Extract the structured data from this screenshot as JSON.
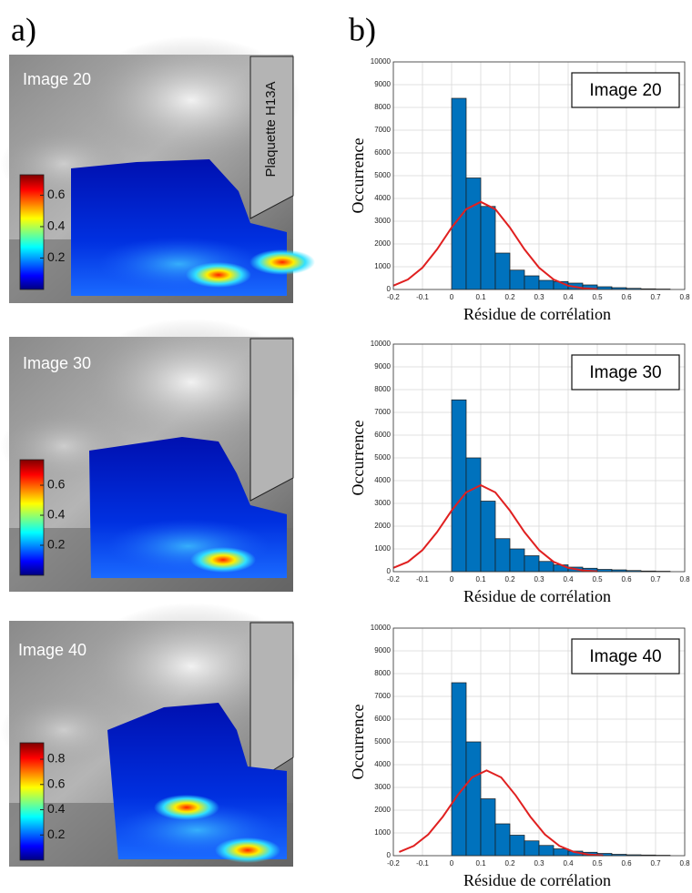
{
  "panel_labels": [
    "a)",
    "b)"
  ],
  "insert_label": "Plaquette H13A",
  "images": [
    {
      "label": "Image 20",
      "clim": [
        0,
        0.73
      ],
      "colorbar_ticks": [
        0.2,
        0.4,
        0.6
      ]
    },
    {
      "label": "Image 30",
      "clim": [
        0,
        0.77
      ],
      "colorbar_ticks": [
        0.2,
        0.4,
        0.6
      ]
    },
    {
      "label": "Image 40",
      "clim": [
        0,
        0.93
      ],
      "colorbar_ticks": [
        0.2,
        0.4,
        0.6,
        0.8
      ]
    }
  ],
  "chart_data": [
    {
      "type": "histogram",
      "legend": "Image 20",
      "xlabel": "Résidue de corrélation",
      "ylabel": "Occurrence",
      "color": "#0072bd",
      "bins": [
        0,
        0.05,
        0.1,
        0.15,
        0.2,
        0.25,
        0.3,
        0.35,
        0.4,
        0.45,
        0.5,
        0.55,
        0.6,
        0.65,
        0.7,
        0.75,
        0.8
      ],
      "counts": [
        8400,
        4900,
        3650,
        1600,
        850,
        600,
        400,
        350,
        280,
        200,
        120,
        80,
        50,
        30,
        20,
        0
      ],
      "fit": {
        "color": "#e02020",
        "x": [
          -0.2,
          -0.15,
          -0.1,
          -0.05,
          0,
          0.05,
          0.1,
          0.15,
          0.2,
          0.25,
          0.3,
          0.35,
          0.4,
          0.45,
          0.5
        ],
        "values": [
          169,
          439,
          960,
          1763,
          2721,
          3530,
          3850,
          3530,
          2721,
          1763,
          960,
          439,
          169,
          55,
          15
        ]
      },
      "xlim": [
        -0.2,
        0.8
      ],
      "xticks": [
        -0.2,
        -0.1,
        0,
        0.1,
        0.2,
        0.3,
        0.4,
        0.5,
        0.6,
        0.7,
        0.8
      ],
      "ylim": [
        0,
        10000
      ],
      "yticks": [
        0,
        1000,
        2000,
        3000,
        4000,
        5000,
        6000,
        7000,
        8000,
        9000,
        10000
      ],
      "grid": true
    },
    {
      "type": "histogram",
      "legend": "Image 30",
      "xlabel": "Résidue de corrélation",
      "ylabel": "Occurrence",
      "color": "#0072bd",
      "bins": [
        0,
        0.05,
        0.1,
        0.15,
        0.2,
        0.25,
        0.3,
        0.35,
        0.4,
        0.45,
        0.5,
        0.55,
        0.6,
        0.65,
        0.7,
        0.75,
        0.8
      ],
      "counts": [
        7550,
        5000,
        3100,
        1450,
        1000,
        700,
        450,
        300,
        200,
        150,
        100,
        80,
        50,
        30,
        20,
        0
      ],
      "fit": {
        "color": "#e02020",
        "x": [
          -0.2,
          -0.15,
          -0.1,
          -0.05,
          0,
          0.05,
          0.1,
          0.15,
          0.2,
          0.25,
          0.3,
          0.35,
          0.4,
          0.45,
          0.5
        ],
        "values": [
          167,
          433,
          948,
          1740,
          2686,
          3484,
          3800,
          3484,
          2686,
          1740,
          948,
          433,
          167,
          54,
          15
        ]
      },
      "xlim": [
        -0.2,
        0.8
      ],
      "xticks": [
        -0.2,
        -0.1,
        0,
        0.1,
        0.2,
        0.3,
        0.4,
        0.5,
        0.6,
        0.7,
        0.8
      ],
      "ylim": [
        0,
        10000
      ],
      "yticks": [
        0,
        1000,
        2000,
        3000,
        4000,
        5000,
        6000,
        7000,
        8000,
        9000,
        10000
      ],
      "grid": true
    },
    {
      "type": "histogram",
      "legend": "Image 40",
      "xlabel": "Résidue de corrélation",
      "ylabel": "Occurrence",
      "color": "#0072bd",
      "bins": [
        0,
        0.05,
        0.1,
        0.15,
        0.2,
        0.25,
        0.3,
        0.35,
        0.4,
        0.45,
        0.5,
        0.55,
        0.6,
        0.65,
        0.7,
        0.75,
        0.8
      ],
      "counts": [
        7600,
        5000,
        2500,
        1400,
        900,
        650,
        450,
        300,
        200,
        150,
        100,
        60,
        40,
        30,
        20,
        0
      ],
      "fit": {
        "color": "#e02020",
        "x": [
          -0.18,
          -0.13,
          -0.08,
          -0.03,
          0.02,
          0.07,
          0.12,
          0.17,
          0.22,
          0.27,
          0.32,
          0.37,
          0.42,
          0.47,
          0.52
        ],
        "values": [
          165,
          428,
          936,
          1717,
          2650,
          3438,
          3750,
          3438,
          2650,
          1717,
          936,
          428,
          165,
          53,
          15
        ]
      },
      "xlim": [
        -0.2,
        0.8
      ],
      "xticks": [
        -0.2,
        -0.1,
        0,
        0.1,
        0.2,
        0.3,
        0.4,
        0.5,
        0.6,
        0.7,
        0.8
      ],
      "ylim": [
        0,
        10000
      ],
      "yticks": [
        0,
        1000,
        2000,
        3000,
        4000,
        5000,
        6000,
        7000,
        8000,
        9000,
        10000
      ],
      "grid": true
    }
  ]
}
